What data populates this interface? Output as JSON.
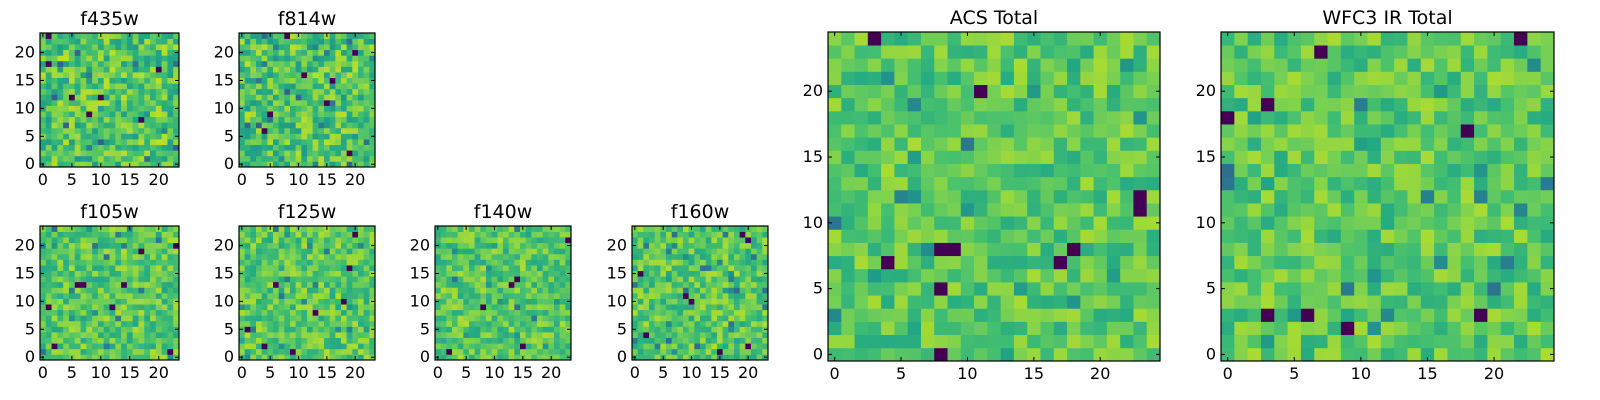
{
  "chart_data": {
    "type": "heatmap",
    "colormap": "viridis",
    "grid": false,
    "panels": [
      {
        "id": "f435w",
        "title": "f435w",
        "grid_size": 24,
        "xlim": [
          0,
          24
        ],
        "ylim": [
          0,
          24
        ],
        "xticks": [
          0,
          5,
          10,
          15,
          20
        ],
        "yticks": [
          0,
          5,
          10,
          15,
          20
        ],
        "value_range": [
          0,
          1
        ],
        "typical_level": 0.72,
        "noise_level": 0.18,
        "seed": 11,
        "dark_pixels": [
          [
            1,
            23
          ],
          [
            17,
            8
          ],
          [
            8,
            9
          ],
          [
            20,
            17
          ],
          [
            1,
            18
          ],
          [
            10,
            12
          ],
          [
            5,
            12
          ]
        ]
      },
      {
        "id": "f814w",
        "title": "f814w",
        "grid_size": 24,
        "xlim": [
          0,
          24
        ],
        "ylim": [
          0,
          24
        ],
        "xticks": [
          0,
          5,
          10,
          15,
          20
        ],
        "yticks": [
          0,
          5,
          10,
          15,
          20
        ],
        "value_range": [
          0,
          1
        ],
        "typical_level": 0.72,
        "noise_level": 0.18,
        "seed": 23,
        "dark_pixels": [
          [
            8,
            23
          ],
          [
            20,
            20
          ],
          [
            5,
            9
          ],
          [
            15,
            11
          ],
          [
            19,
            2
          ],
          [
            11,
            16
          ],
          [
            4,
            6
          ],
          [
            16,
            15
          ]
        ]
      },
      {
        "id": "f105w",
        "title": "f105w",
        "grid_size": 24,
        "xlim": [
          0,
          24
        ],
        "ylim": [
          0,
          24
        ],
        "xticks": [
          0,
          5,
          10,
          15,
          20
        ],
        "yticks": [
          0,
          5,
          10,
          15,
          20
        ],
        "value_range": [
          0,
          1
        ],
        "typical_level": 0.74,
        "noise_level": 0.14,
        "seed": 37,
        "dark_pixels": [
          [
            6,
            13
          ],
          [
            7,
            13
          ],
          [
            14,
            13
          ],
          [
            22,
            1
          ],
          [
            23,
            20
          ],
          [
            17,
            19
          ],
          [
            12,
            9
          ],
          [
            2,
            2
          ],
          [
            1,
            9
          ]
        ]
      },
      {
        "id": "f125w",
        "title": "f125w",
        "grid_size": 24,
        "xlim": [
          0,
          24
        ],
        "ylim": [
          0,
          24
        ],
        "xticks": [
          0,
          5,
          10,
          15,
          20
        ],
        "yticks": [
          0,
          5,
          10,
          15,
          20
        ],
        "value_range": [
          0,
          1
        ],
        "typical_level": 0.74,
        "noise_level": 0.14,
        "seed": 41,
        "dark_pixels": [
          [
            19,
            16
          ],
          [
            9,
            1
          ],
          [
            4,
            2
          ],
          [
            13,
            8
          ],
          [
            18,
            10
          ],
          [
            20,
            22
          ],
          [
            6,
            13
          ],
          [
            1,
            5
          ]
        ]
      },
      {
        "id": "f140w",
        "title": "f140w",
        "grid_size": 24,
        "xlim": [
          0,
          24
        ],
        "ylim": [
          0,
          24
        ],
        "xticks": [
          0,
          5,
          10,
          15,
          20
        ],
        "yticks": [
          0,
          5,
          10,
          15,
          20
        ],
        "value_range": [
          0,
          1
        ],
        "typical_level": 0.74,
        "noise_level": 0.14,
        "seed": 53,
        "dark_pixels": [
          [
            14,
            14
          ],
          [
            8,
            9
          ],
          [
            15,
            2
          ],
          [
            23,
            21
          ],
          [
            13,
            13
          ],
          [
            2,
            1
          ]
        ]
      },
      {
        "id": "f160w",
        "title": "f160w",
        "grid_size": 24,
        "xlim": [
          0,
          24
        ],
        "ylim": [
          0,
          24
        ],
        "xticks": [
          0,
          5,
          10,
          15,
          20
        ],
        "yticks": [
          0,
          5,
          10,
          15,
          20
        ],
        "value_range": [
          0,
          1
        ],
        "typical_level": 0.74,
        "noise_level": 0.14,
        "seed": 67,
        "dark_pixels": [
          [
            19,
            22
          ],
          [
            20,
            21
          ],
          [
            1,
            15
          ],
          [
            2,
            4
          ],
          [
            9,
            11
          ],
          [
            10,
            10
          ],
          [
            15,
            1
          ],
          [
            20,
            2
          ]
        ]
      },
      {
        "id": "acs_total",
        "title": "ACS Total",
        "grid_size": 25,
        "xlim": [
          0,
          25
        ],
        "ylim": [
          0,
          25
        ],
        "xticks": [
          0,
          5,
          10,
          15,
          20
        ],
        "yticks": [
          0,
          5,
          10,
          15,
          20
        ],
        "value_range": [
          0,
          1
        ],
        "typical_level": 0.74,
        "noise_level": 0.13,
        "seed": 79,
        "dark_pixels": [
          [
            3,
            24
          ],
          [
            11,
            20
          ],
          [
            23,
            12
          ],
          [
            23,
            11
          ],
          [
            8,
            8
          ],
          [
            9,
            8
          ],
          [
            18,
            8
          ],
          [
            4,
            7
          ],
          [
            17,
            7
          ],
          [
            8,
            5
          ],
          [
            8,
            0
          ]
        ]
      },
      {
        "id": "wfc3_ir_total",
        "title": "WFC3 IR Total",
        "grid_size": 25,
        "xlim": [
          0,
          25
        ],
        "ylim": [
          0,
          25
        ],
        "xticks": [
          0,
          5,
          10,
          15,
          20
        ],
        "yticks": [
          0,
          5,
          10,
          15,
          20
        ],
        "value_range": [
          0,
          1
        ],
        "typical_level": 0.74,
        "noise_level": 0.13,
        "seed": 97,
        "dark_pixels": [
          [
            7,
            23
          ],
          [
            22,
            24
          ],
          [
            3,
            19
          ],
          [
            18,
            17
          ],
          [
            3,
            3
          ],
          [
            6,
            3
          ],
          [
            19,
            3
          ],
          [
            9,
            2
          ],
          [
            0,
            18
          ]
        ]
      }
    ]
  }
}
